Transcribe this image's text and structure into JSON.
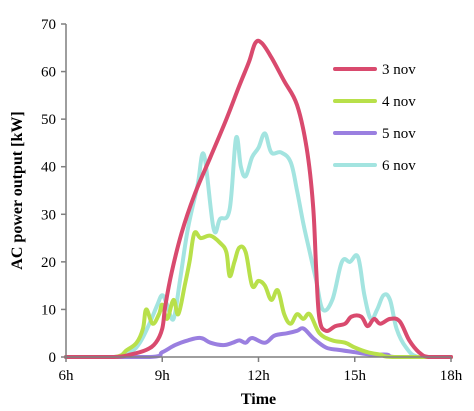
{
  "chart_data": {
    "type": "line",
    "title": "",
    "xlabel": "Time",
    "ylabel": "AC power output [kW]",
    "xlim": [
      6,
      18
    ],
    "ylim": [
      0,
      70
    ],
    "x_ticks": [
      {
        "value": 6,
        "label": "6h"
      },
      {
        "value": 9,
        "label": "9h"
      },
      {
        "value": 12,
        "label": "12h"
      },
      {
        "value": 15,
        "label": "15h"
      },
      {
        "value": 18,
        "label": "18h"
      }
    ],
    "y_ticks": [
      0,
      10,
      20,
      30,
      40,
      50,
      60,
      70
    ],
    "grid": false,
    "legend_position": "top-right",
    "series": [
      {
        "name": "3 nov",
        "color": "#d94a6e",
        "points": [
          [
            6,
            0
          ],
          [
            7.5,
            0
          ],
          [
            8.0,
            0.5
          ],
          [
            8.5,
            1.5
          ],
          [
            8.8,
            3
          ],
          [
            9.0,
            6
          ],
          [
            9.1,
            11
          ],
          [
            9.3,
            18
          ],
          [
            9.6,
            26
          ],
          [
            10.0,
            34
          ],
          [
            10.5,
            42
          ],
          [
            11.0,
            50
          ],
          [
            11.4,
            57
          ],
          [
            11.7,
            62
          ],
          [
            11.9,
            66
          ],
          [
            12.1,
            66
          ],
          [
            12.4,
            63
          ],
          [
            12.8,
            58
          ],
          [
            13.2,
            53
          ],
          [
            13.5,
            44
          ],
          [
            13.7,
            32
          ],
          [
            13.8,
            18
          ],
          [
            13.9,
            8
          ],
          [
            14.1,
            5.5
          ],
          [
            14.4,
            6.5
          ],
          [
            14.7,
            7
          ],
          [
            14.9,
            8.5
          ],
          [
            15.2,
            8.5
          ],
          [
            15.4,
            6.5
          ],
          [
            15.6,
            8
          ],
          [
            15.8,
            7
          ],
          [
            16.1,
            8
          ],
          [
            16.4,
            7.5
          ],
          [
            16.7,
            3.5
          ],
          [
            17.0,
            1
          ],
          [
            17.3,
            0
          ],
          [
            18,
            0
          ]
        ]
      },
      {
        "name": "4 nov",
        "color": "#b8e04a",
        "points": [
          [
            6,
            0
          ],
          [
            7.5,
            0
          ],
          [
            7.9,
            1.5
          ],
          [
            8.2,
            3
          ],
          [
            8.4,
            6
          ],
          [
            8.5,
            10
          ],
          [
            8.7,
            7
          ],
          [
            8.9,
            9
          ],
          [
            9.0,
            11
          ],
          [
            9.15,
            8
          ],
          [
            9.35,
            12
          ],
          [
            9.5,
            9
          ],
          [
            9.7,
            15
          ],
          [
            9.85,
            20
          ],
          [
            10.0,
            26
          ],
          [
            10.2,
            25
          ],
          [
            10.5,
            25.5
          ],
          [
            10.8,
            24
          ],
          [
            11.0,
            22
          ],
          [
            11.1,
            17
          ],
          [
            11.25,
            20
          ],
          [
            11.4,
            23
          ],
          [
            11.6,
            22
          ],
          [
            11.8,
            15
          ],
          [
            12.0,
            16
          ],
          [
            12.2,
            15
          ],
          [
            12.4,
            12
          ],
          [
            12.6,
            14
          ],
          [
            12.8,
            9
          ],
          [
            13.0,
            7
          ],
          [
            13.2,
            9
          ],
          [
            13.4,
            8
          ],
          [
            13.6,
            9
          ],
          [
            13.9,
            5
          ],
          [
            14.3,
            3.5
          ],
          [
            14.7,
            3
          ],
          [
            15.0,
            2
          ],
          [
            15.4,
            1
          ],
          [
            15.8,
            0.5
          ],
          [
            16.2,
            0
          ],
          [
            18,
            0
          ]
        ]
      },
      {
        "name": "5 nov",
        "color": "#9a7fe0",
        "points": [
          [
            6,
            0
          ],
          [
            8.6,
            0
          ],
          [
            9.0,
            1
          ],
          [
            9.4,
            2.5
          ],
          [
            9.8,
            3.5
          ],
          [
            10.2,
            4
          ],
          [
            10.5,
            3
          ],
          [
            10.9,
            2.5
          ],
          [
            11.2,
            3
          ],
          [
            11.4,
            3.5
          ],
          [
            11.6,
            3
          ],
          [
            11.8,
            4
          ],
          [
            12.2,
            3
          ],
          [
            12.5,
            4.5
          ],
          [
            12.9,
            5
          ],
          [
            13.2,
            5.5
          ],
          [
            13.4,
            6
          ],
          [
            13.7,
            4
          ],
          [
            14.1,
            2
          ],
          [
            14.5,
            1.5
          ],
          [
            15.0,
            1
          ],
          [
            15.5,
            0.5
          ],
          [
            16.0,
            0.5
          ],
          [
            16.3,
            0
          ],
          [
            18,
            0
          ]
        ]
      },
      {
        "name": "6 nov",
        "color": "#a3e4e0",
        "points": [
          [
            6,
            0
          ],
          [
            7.5,
            0
          ],
          [
            8.0,
            1
          ],
          [
            8.3,
            3
          ],
          [
            8.6,
            7
          ],
          [
            8.85,
            11
          ],
          [
            9.0,
            13
          ],
          [
            9.15,
            11
          ],
          [
            9.35,
            8
          ],
          [
            9.55,
            16
          ],
          [
            9.8,
            27
          ],
          [
            10.1,
            36
          ],
          [
            10.3,
            42.5
          ],
          [
            10.6,
            27
          ],
          [
            10.8,
            29
          ],
          [
            11.1,
            31
          ],
          [
            11.3,
            46
          ],
          [
            11.45,
            40
          ],
          [
            11.6,
            38
          ],
          [
            11.8,
            42
          ],
          [
            12.0,
            44
          ],
          [
            12.2,
            47
          ],
          [
            12.4,
            43
          ],
          [
            12.7,
            43
          ],
          [
            13.0,
            41
          ],
          [
            13.2,
            35
          ],
          [
            13.4,
            28
          ],
          [
            13.6,
            22
          ],
          [
            13.8,
            16
          ],
          [
            14.0,
            10
          ],
          [
            14.3,
            12
          ],
          [
            14.6,
            20
          ],
          [
            14.85,
            20
          ],
          [
            15.1,
            21
          ],
          [
            15.3,
            13
          ],
          [
            15.5,
            8
          ],
          [
            15.7,
            10
          ],
          [
            15.9,
            13
          ],
          [
            16.1,
            12
          ],
          [
            16.3,
            6
          ],
          [
            16.6,
            2
          ],
          [
            17.0,
            0
          ],
          [
            18,
            0
          ]
        ]
      }
    ]
  }
}
